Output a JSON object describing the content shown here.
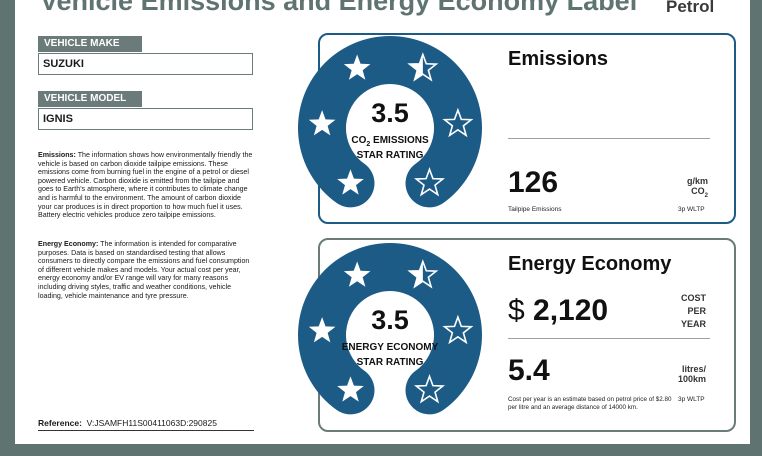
{
  "label": {
    "title": "Vehicle Emissions and Energy Economy Label",
    "fuel_type": "Petrol"
  },
  "vehicle": {
    "make_label": "VEHICLE MAKE",
    "make": "SUZUKI",
    "model_label": "VEHICLE MODEL",
    "model": "IGNIS"
  },
  "info": {
    "emissions_heading": "Emissions:",
    "emissions_text": "The information shows how environmentally friendly the vehicle is based on carbon dioxide tailpipe emissions. These emissions come from burning fuel in the engine of a petrol or diesel powered vehicle. Carbon dioxide is emitted from the tailpipe and goes to Earth's atmosphere, where it contributes to climate change and is harmful to the environment. The amount of carbon dioxide your car produces is in direct proportion to how much fuel it uses. Battery electric vehicles produce zero tailpipe emissions.",
    "economy_heading": "Energy Economy:",
    "economy_text": "The information is intended for comparative purposes. Data is based on standardised testing that allows consumers to directly compare the emissions and fuel consumption of different vehicle makes and models. Your actual cost per year, energy economy and/or EV range will vary for many reasons including driving styles, traffic and weather conditions, vehicle loading, vehicle maintenance and tyre pressure."
  },
  "reference": {
    "label": "Reference:",
    "value": "V:JSAMFH11S00411063D:290825"
  },
  "emissions": {
    "title": "Emissions",
    "rating": "3.5",
    "rating_line1_pre": "CO",
    "rating_line1_sub": "2",
    "rating_line1_post": " EMISSIONS",
    "rating_line2": "STAR RATING",
    "stars_filled": 3.5,
    "stars_total": 6,
    "value": "126",
    "unit_line1": "g/km",
    "unit_line2_pre": "CO",
    "unit_line2_sub": "2",
    "footer_left": "Tailpipe Emissions",
    "footer_right": "3p WLTP",
    "color": "#1d5b87"
  },
  "economy": {
    "title": "Energy Economy",
    "rating": "3.5",
    "rating_line1": "ENERGY ECONOMY",
    "rating_line2": "STAR RATING",
    "stars_filled": 3.5,
    "stars_total": 6,
    "currency": "$",
    "cost": "2,120",
    "cost_unit_line1": "COST",
    "cost_unit_line2": "PER",
    "cost_unit_line3": "YEAR",
    "consumption": "5.4",
    "consumption_unit_line1": "litres/",
    "consumption_unit_line2": "100km",
    "note": "Cost per year is an estimate based on petrol price of $2.80 per litre and an average distance of 14000 km.",
    "footer_right": "3p WLTP"
  }
}
